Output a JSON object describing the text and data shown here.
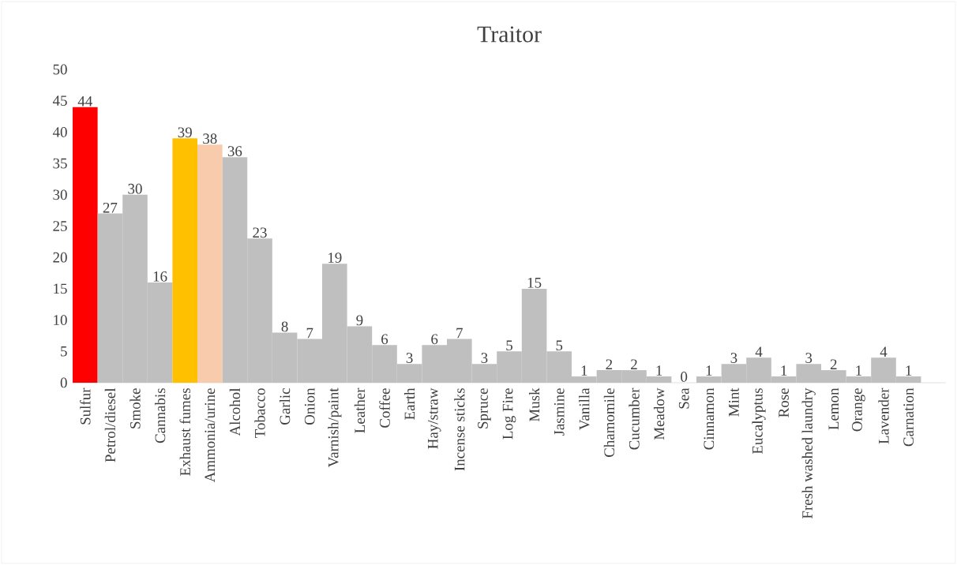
{
  "chart_data": {
    "type": "bar",
    "title": "Traitor",
    "categories": [
      "Sulfur",
      "Petrol/diesel",
      "Smoke",
      "Cannabis",
      "Exhaust fumes",
      "Ammonia/urine",
      "Alcohol",
      "Tobacco",
      "Garlic",
      "Onion",
      "Varnish/paint",
      "Leather",
      "Coffee",
      "Earth",
      "Hay/straw",
      "Incense sticks",
      "Spruce",
      "Log Fire",
      "Musk",
      "Jasmine",
      "Vanilla",
      "Chamomile",
      "Cucumber",
      "Meadow",
      "Sea",
      "Cinnamon",
      "Mint",
      "Eucalyptus",
      "Rose",
      "Fresh washed laundry",
      "Lemon",
      "Orange",
      "Lavender",
      "Carnation",
      null
    ],
    "values": [
      44,
      27,
      30,
      16,
      39,
      38,
      36,
      23,
      8,
      7,
      19,
      9,
      6,
      3,
      6,
      7,
      3,
      5,
      15,
      5,
      1,
      2,
      2,
      1,
      0,
      1,
      3,
      4,
      1,
      3,
      2,
      1,
      4,
      1,
      null
    ],
    "colors": [
      "#ff0000",
      "#bfbfbf",
      "#bfbfbf",
      "#bfbfbf",
      "#ffc000",
      "#f8cbad",
      "#bfbfbf",
      "#bfbfbf",
      "#bfbfbf",
      "#bfbfbf",
      "#bfbfbf",
      "#bfbfbf",
      "#bfbfbf",
      "#bfbfbf",
      "#bfbfbf",
      "#bfbfbf",
      "#bfbfbf",
      "#bfbfbf",
      "#bfbfbf",
      "#bfbfbf",
      "#bfbfbf",
      "#bfbfbf",
      "#bfbfbf",
      "#bfbfbf",
      "#bfbfbf",
      "#bfbfbf",
      "#bfbfbf",
      "#bfbfbf",
      "#bfbfbf",
      "#bfbfbf",
      "#bfbfbf",
      "#bfbfbf",
      "#bfbfbf",
      "#bfbfbf",
      "#bfbfbf"
    ],
    "ylim": [
      0,
      50
    ],
    "yticks": [
      0,
      5,
      10,
      15,
      20,
      25,
      30,
      35,
      40,
      45,
      50
    ],
    "data_labels": true
  }
}
